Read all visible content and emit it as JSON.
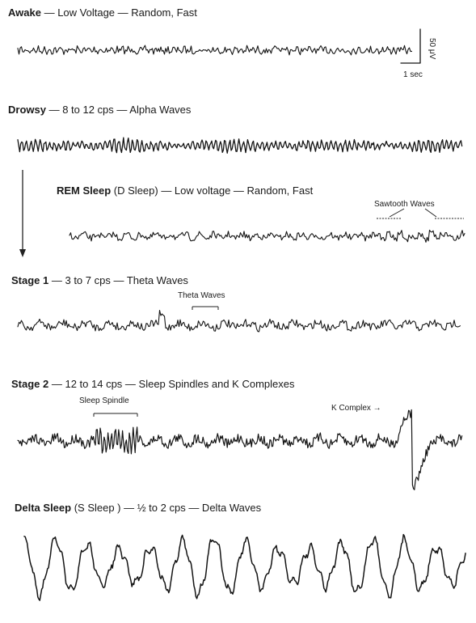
{
  "stages": [
    {
      "id": "awake",
      "name": "Awake",
      "desc": " — Low Voltage — Random, Fast"
    },
    {
      "id": "drowsy",
      "name": "Drowsy",
      "desc": " — 8 to 12 cps — Alpha Waves"
    },
    {
      "id": "rem",
      "name": "REM Sleep",
      "desc": " (D Sleep) — Low voltage — Random, Fast"
    },
    {
      "id": "stage1",
      "name": "Stage 1",
      "desc": " — 3 to 7 cps — Theta Waves"
    },
    {
      "id": "stage2",
      "name": "Stage 2",
      "desc": " — 12 to 14 cps — Sleep Spindles and K Complexes"
    },
    {
      "id": "delta",
      "name": "Delta Sleep",
      "desc": " (S Sleep ) — ½ to 2 cps — Delta Waves"
    }
  ],
  "annotations": {
    "sawtooth": "Sawtooth Waves",
    "theta": "Theta Waves",
    "spindle": "Sleep Spindle",
    "k_complex": "K Complex →"
  },
  "scale": {
    "amplitude": "50 μV",
    "time": "1 sec"
  }
}
